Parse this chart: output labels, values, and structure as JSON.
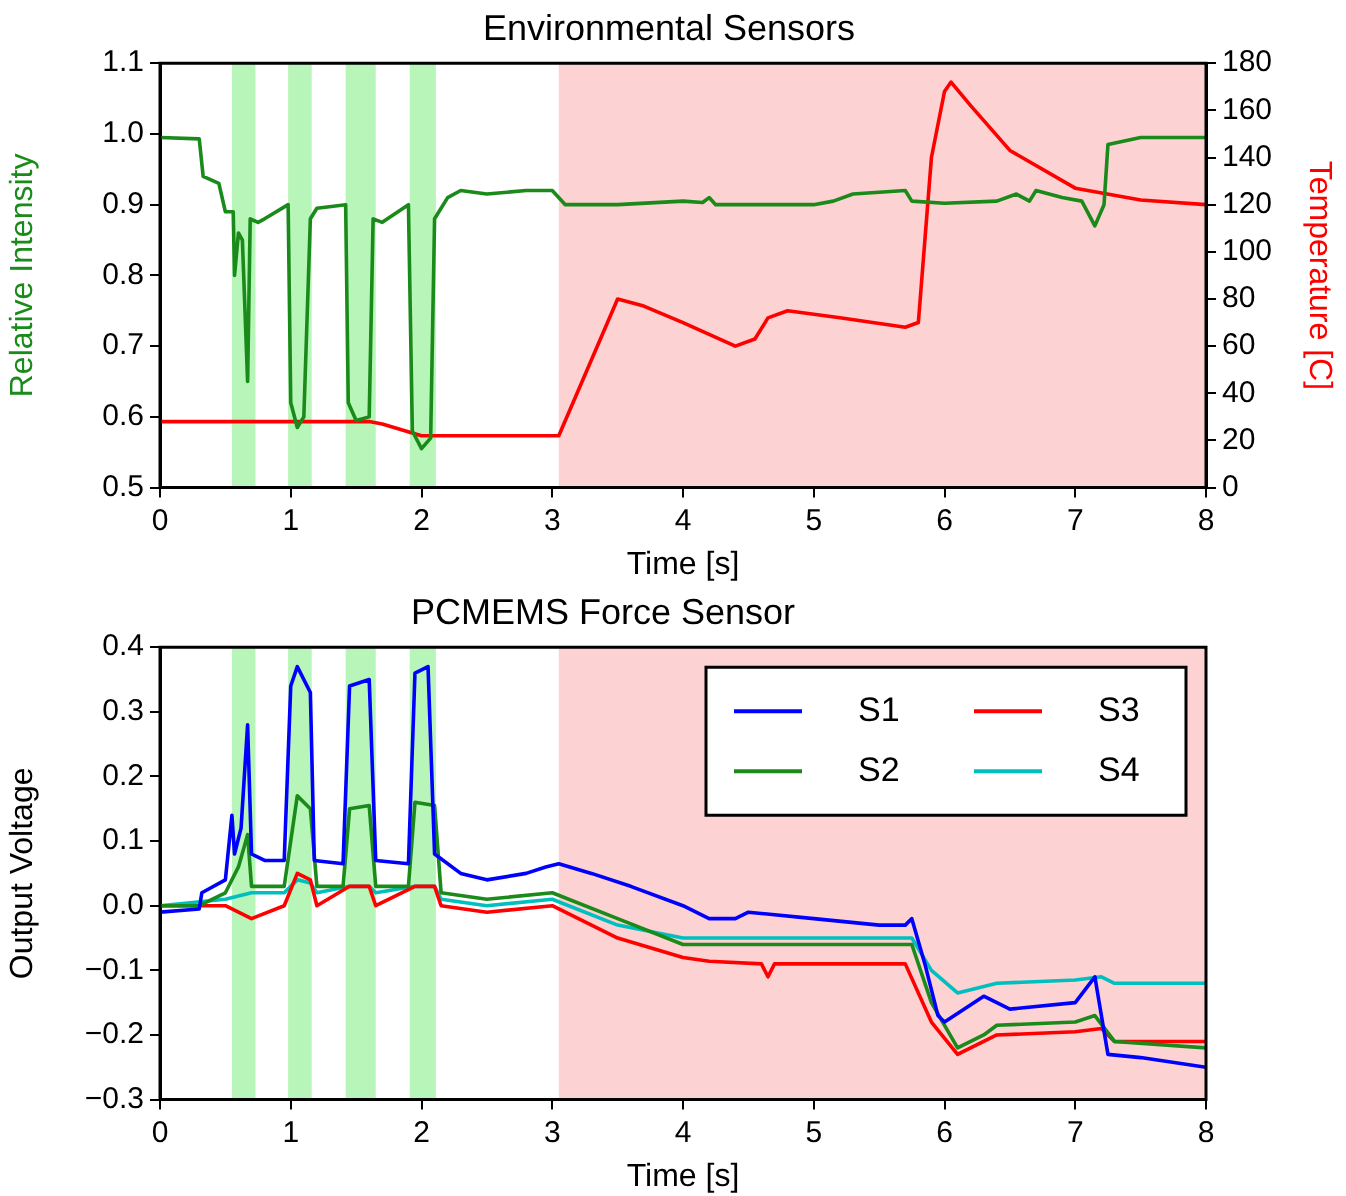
{
  "chart_data": [
    {
      "type": "line",
      "title": "Environmental Sensors",
      "xlabel": "Time [s]",
      "ylabel": "Relative Intensity",
      "y2label": "Temperature [C]",
      "xlim": [
        0,
        8
      ],
      "xticks": [
        0,
        1,
        2,
        3,
        4,
        5,
        6,
        7,
        8
      ],
      "ylim": [
        0.5,
        1.1
      ],
      "yticks": [
        {
          "value": 0.5,
          "label": "0.5"
        },
        {
          "value": 0.6,
          "label": "0.6"
        },
        {
          "value": 0.7,
          "label": "0.7"
        },
        {
          "value": 0.8,
          "label": "0.8"
        },
        {
          "value": 0.9,
          "label": "0.9"
        },
        {
          "value": 1.0,
          "label": "1.0"
        },
        {
          "value": 1.1,
          "label": "1.1"
        }
      ],
      "y2lim": [
        0,
        180
      ],
      "y2ticks": [
        0,
        20,
        40,
        60,
        80,
        100,
        120,
        140,
        160,
        180
      ],
      "series": [
        {
          "color": "#1a8a1a",
          "x": [
            0,
            0.3,
            0.33,
            0.45,
            0.5,
            0.56,
            0.57,
            0.6,
            0.63,
            0.67,
            0.69,
            0.75,
            0.8,
            0.98,
            1.0,
            1.05,
            1.1,
            1.15,
            1.2,
            1.42,
            1.44,
            1.5,
            1.6,
            1.63,
            1.7,
            1.9,
            1.93,
            2.0,
            2.07,
            2.1,
            2.2,
            2.3,
            2.5,
            2.8,
            3.0,
            3.1,
            3.5,
            4.0,
            4.15,
            4.2,
            4.25,
            5.0,
            5.15,
            5.3,
            5.7,
            5.75,
            6.0,
            6.4,
            6.55,
            6.65,
            6.7,
            6.9,
            7.05,
            7.15,
            7.22,
            7.25,
            7.5,
            8
          ],
          "values": [
            0.995,
            0.993,
            0.94,
            0.93,
            0.89,
            0.89,
            0.8,
            0.86,
            0.85,
            0.65,
            0.88,
            0.875,
            0.88,
            0.9,
            0.62,
            0.585,
            0.6,
            0.88,
            0.895,
            0.9,
            0.62,
            0.595,
            0.6,
            0.88,
            0.875,
            0.9,
            0.58,
            0.555,
            0.57,
            0.88,
            0.91,
            0.92,
            0.915,
            0.92,
            0.92,
            0.9,
            0.9,
            0.905,
            0.903,
            0.91,
            0.9,
            0.9,
            0.905,
            0.915,
            0.92,
            0.905,
            0.902,
            0.905,
            0.915,
            0.905,
            0.92,
            0.91,
            0.905,
            0.87,
            0.9,
            0.985,
            0.995,
            0.995
          ]
        },
        {
          "color": "#ff0000",
          "axis": "y2",
          "x": [
            0,
            0.5,
            1.0,
            1.6,
            1.7,
            2.0,
            2.5,
            3.0,
            3.05,
            3.5,
            3.7,
            4.0,
            4.4,
            4.55,
            4.65,
            4.8,
            5.2,
            5.7,
            5.8,
            5.9,
            6.0,
            6.05,
            6.2,
            6.5,
            7.0,
            7.5,
            8
          ],
          "values": [
            28,
            28,
            28,
            28,
            27,
            22,
            22,
            22,
            22,
            80,
            77,
            70,
            60,
            63,
            72,
            75,
            72,
            68,
            70,
            140,
            168,
            172,
            162,
            143,
            127,
            122,
            120
          ]
        }
      ],
      "bands": [
        {
          "axis": "x",
          "from": 0.55,
          "to": 0.73,
          "color": "#b8f5b8"
        },
        {
          "axis": "x",
          "from": 0.98,
          "to": 1.16,
          "color": "#b8f5b8"
        },
        {
          "axis": "x",
          "from": 1.42,
          "to": 1.65,
          "color": "#b8f5b8"
        },
        {
          "axis": "x",
          "from": 1.91,
          "to": 2.11,
          "color": "#b8f5b8"
        },
        {
          "axis": "x",
          "from": 3.05,
          "to": 8,
          "color": "#fcd2d2"
        }
      ]
    },
    {
      "type": "line",
      "title": "PCMEMS Force Sensor",
      "xlabel": "Time [s]",
      "ylabel": "Output Voltage",
      "xlim": [
        0,
        8
      ],
      "xticks": [
        0,
        1,
        2,
        3,
        4,
        5,
        6,
        7,
        8
      ],
      "ylim": [
        -0.3,
        0.4
      ],
      "yticks": [
        {
          "value": -0.3,
          "label": "−0.3"
        },
        {
          "value": -0.2,
          "label": "−0.2"
        },
        {
          "value": -0.1,
          "label": "−0.1"
        },
        {
          "value": 0,
          "label": "0.0"
        },
        {
          "value": 0.1,
          "label": "0.1"
        },
        {
          "value": 0.2,
          "label": "0.2"
        },
        {
          "value": 0.3,
          "label": "0.3"
        },
        {
          "value": 0.4,
          "label": "0.4"
        }
      ],
      "legend": "top right",
      "series": [
        {
          "name": "S1",
          "color": "#0000ff",
          "x": [
            0,
            0.3,
            0.32,
            0.5,
            0.55,
            0.57,
            0.62,
            0.67,
            0.7,
            0.8,
            0.95,
            1.0,
            1.05,
            1.15,
            1.18,
            1.4,
            1.45,
            1.6,
            1.65,
            1.9,
            1.95,
            2.05,
            2.1,
            2.3,
            2.5,
            2.8,
            2.95,
            3.05,
            3.3,
            3.6,
            4.0,
            4.2,
            4.4,
            4.5,
            5.0,
            5.5,
            5.7,
            5.75,
            5.85,
            5.95,
            6.0,
            6.3,
            6.5,
            7.0,
            7.15,
            7.25,
            7.5,
            8
          ],
          "values": [
            -0.01,
            -0.005,
            0.02,
            0.04,
            0.14,
            0.08,
            0.12,
            0.28,
            0.08,
            0.07,
            0.07,
            0.34,
            0.37,
            0.33,
            0.07,
            0.065,
            0.34,
            0.35,
            0.07,
            0.065,
            0.36,
            0.37,
            0.08,
            0.05,
            0.04,
            0.05,
            0.06,
            0.065,
            0.05,
            0.03,
            0.0,
            -0.02,
            -0.02,
            -0.01,
            -0.02,
            -0.03,
            -0.03,
            -0.02,
            -0.09,
            -0.17,
            -0.18,
            -0.14,
            -0.16,
            -0.15,
            -0.11,
            -0.23,
            -0.235,
            -0.25
          ]
        },
        {
          "name": "S2",
          "color": "#1a8a1a",
          "x": [
            0,
            0.3,
            0.5,
            0.6,
            0.67,
            0.7,
            0.95,
            1.05,
            1.15,
            1.2,
            1.4,
            1.45,
            1.6,
            1.65,
            1.9,
            1.95,
            2.1,
            2.15,
            2.5,
            3.0,
            3.5,
            4.0,
            4.5,
            5.0,
            5.75,
            5.9,
            6.1,
            6.3,
            6.4,
            7.0,
            7.15,
            7.3,
            8
          ],
          "values": [
            0,
            0,
            0.02,
            0.06,
            0.11,
            0.03,
            0.03,
            0.17,
            0.15,
            0.03,
            0.03,
            0.15,
            0.155,
            0.03,
            0.03,
            0.16,
            0.155,
            0.02,
            0.01,
            0.02,
            -0.02,
            -0.06,
            -0.06,
            -0.06,
            -0.06,
            -0.15,
            -0.22,
            -0.2,
            -0.185,
            -0.18,
            -0.17,
            -0.21,
            -0.22
          ]
        },
        {
          "name": "S3",
          "color": "#ff0000",
          "x": [
            0,
            0.5,
            0.6,
            0.7,
            0.95,
            1.05,
            1.15,
            1.2,
            1.45,
            1.6,
            1.65,
            1.95,
            2.1,
            2.15,
            2.5,
            3.0,
            3.5,
            4.0,
            4.2,
            4.6,
            4.65,
            4.7,
            5.0,
            5.7,
            5.9,
            6.1,
            6.3,
            6.4,
            7.0,
            7.2,
            7.3,
            8
          ],
          "values": [
            0,
            0,
            -0.01,
            -0.02,
            0,
            0.05,
            0.04,
            0,
            0.03,
            0.03,
            0,
            0.03,
            0.03,
            0,
            -0.01,
            0,
            -0.05,
            -0.08,
            -0.086,
            -0.09,
            -0.11,
            -0.09,
            -0.09,
            -0.09,
            -0.18,
            -0.23,
            -0.21,
            -0.2,
            -0.195,
            -0.19,
            -0.21,
            -0.21
          ]
        },
        {
          "name": "S4",
          "color": "#00bfbf",
          "x": [
            0,
            0.5,
            0.7,
            0.95,
            1.05,
            1.15,
            1.2,
            1.45,
            1.6,
            1.65,
            1.95,
            2.1,
            2.15,
            2.5,
            3.0,
            3.5,
            4.0,
            4.2,
            5.0,
            5.75,
            5.9,
            6.1,
            6.3,
            6.4,
            7.0,
            7.2,
            7.3,
            8
          ],
          "values": [
            0,
            0.01,
            0.02,
            0.02,
            0.04,
            0.035,
            0.02,
            0.03,
            0.03,
            0.02,
            0.03,
            0.03,
            0.01,
            0,
            0.01,
            -0.03,
            -0.05,
            -0.05,
            -0.05,
            -0.05,
            -0.1,
            -0.135,
            -0.125,
            -0.12,
            -0.115,
            -0.11,
            -0.12,
            -0.12
          ]
        }
      ],
      "bands": [
        {
          "axis": "x",
          "from": 0.55,
          "to": 0.73,
          "color": "#b8f5b8"
        },
        {
          "axis": "x",
          "from": 0.98,
          "to": 1.16,
          "color": "#b8f5b8"
        },
        {
          "axis": "x",
          "from": 1.42,
          "to": 1.65,
          "color": "#b8f5b8"
        },
        {
          "axis": "x",
          "from": 1.91,
          "to": 2.11,
          "color": "#b8f5b8"
        },
        {
          "axis": "x",
          "from": 3.05,
          "to": 8,
          "color": "#fcd2d2"
        }
      ]
    }
  ]
}
